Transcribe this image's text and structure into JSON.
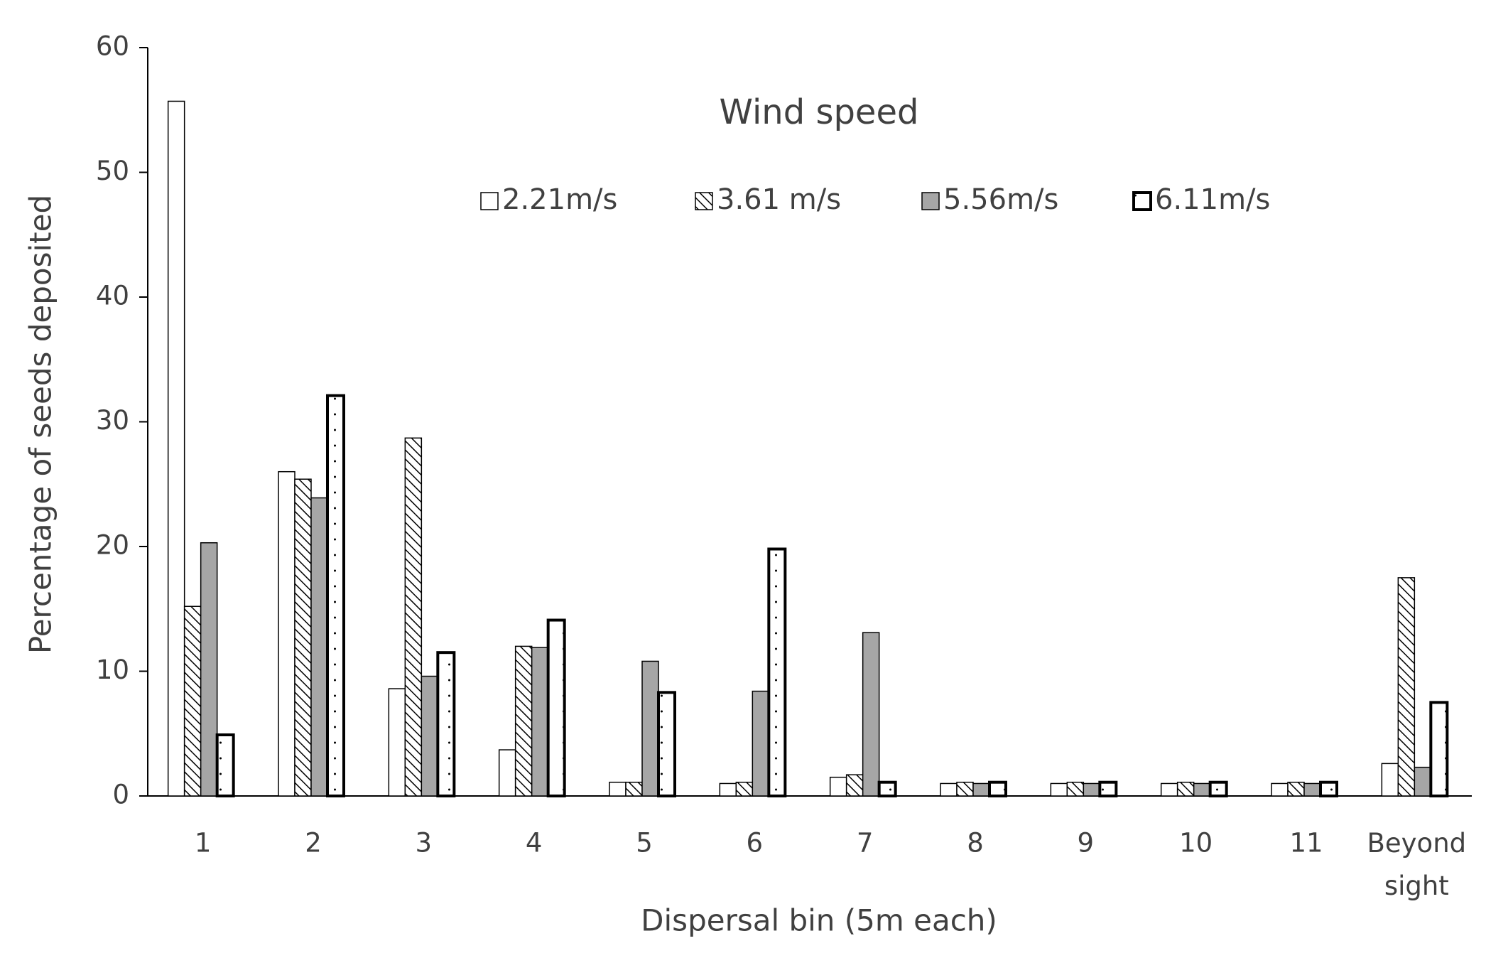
{
  "chart_data": {
    "type": "bar",
    "title": "Wind speed",
    "x_label": "Dispersal bin (5m each)",
    "y_label": "Percentage of seeds deposited",
    "categories": [
      "1",
      "2",
      "3",
      "4",
      "5",
      "6",
      "7",
      "8",
      "9",
      "10",
      "11",
      "Beyond sight"
    ],
    "series": [
      {
        "name": "2.21m/s",
        "color": "#ffffff",
        "pattern": "none",
        "values": [
          55.7,
          26,
          8.6,
          3.7,
          1.1,
          1.0,
          1.5,
          1.0,
          1.0,
          1.0,
          1.0,
          2.6
        ]
      },
      {
        "name": "3.61 m/s",
        "color": "#ffffff",
        "pattern": "hatch",
        "values": [
          15.2,
          25.4,
          28.7,
          12,
          1.1,
          1.1,
          1.7,
          1.1,
          1.1,
          1.1,
          1.1,
          17.5
        ]
      },
      {
        "name": "5.56m/s",
        "color": "#a6a6a6",
        "pattern": "none",
        "values": [
          20.3,
          23.9,
          9.6,
          11.9,
          10.8,
          8.4,
          13.1,
          1.0,
          1.0,
          1.0,
          1.0,
          2.3
        ]
      },
      {
        "name": "6.11m/s",
        "color": "#ffffff",
        "pattern": "dots",
        "values": [
          4.9,
          32.1,
          11.5,
          14.1,
          8.3,
          19.8,
          1.1,
          1.1,
          1.1,
          1.1,
          1.1,
          7.5
        ]
      }
    ],
    "ylim": [
      0,
      60
    ],
    "yticks": [
      0,
      10,
      20,
      30,
      40,
      50,
      60
    ],
    "grid": false
  }
}
